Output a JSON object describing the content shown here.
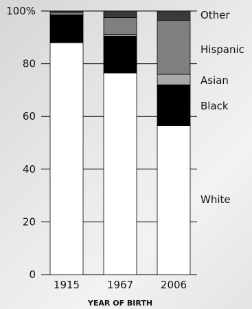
{
  "chart_data": {
    "type": "bar",
    "stacked": true,
    "categories": [
      "1915",
      "1967",
      "2006"
    ],
    "xlabel": "YEAR OF BIRTH",
    "ylabel": "",
    "ylim": [
      0,
      100
    ],
    "yticks": [
      0,
      20,
      40,
      60,
      80,
      100
    ],
    "ytick_labels": [
      "0",
      "20",
      "40",
      "60",
      "80",
      "100%"
    ],
    "series": [
      {
        "name": "White",
        "values": [
          88,
          76.5,
          56.5
        ],
        "color": "#ffffff"
      },
      {
        "name": "Black",
        "values": [
          10.5,
          14,
          15.5
        ],
        "color": "#000000"
      },
      {
        "name": "Asian",
        "values": [
          0,
          0.5,
          4
        ],
        "color": "#a8a8a8"
      },
      {
        "name": "Hispanic",
        "values": [
          1,
          6.5,
          20.5
        ],
        "color": "#7f7f7f"
      },
      {
        "name": "Other",
        "values": [
          0.5,
          2.5,
          3.5
        ],
        "color": "#3a3a3a"
      }
    ],
    "legend_placement": "right",
    "grid": false
  }
}
